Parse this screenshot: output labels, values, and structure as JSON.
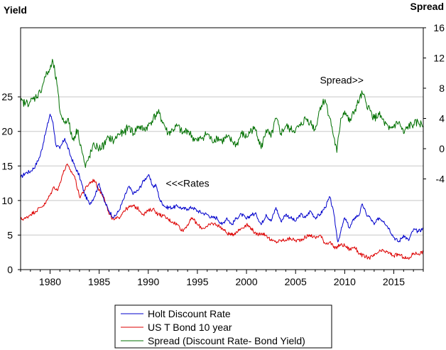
{
  "chart_data": {
    "type": "line",
    "left_axis_label": "Yield",
    "right_axis_label": "Spread",
    "x_range": [
      1977,
      2018
    ],
    "x_ticks": [
      "1980",
      "1985",
      "1990",
      "1995",
      "2000",
      "2005",
      "2010",
      "2015"
    ],
    "left_range": [
      0,
      35
    ],
    "left_ticks": [
      "0",
      "5",
      "10",
      "15",
      "20",
      "25"
    ],
    "right_range": [
      -16,
      16
    ],
    "right_ticks": [
      "-4",
      "0",
      "4",
      "8",
      "12",
      "16"
    ],
    "grid": "horizontal",
    "annotations": [
      {
        "text": "Spread>>",
        "x": 2009.7,
        "y_right": 8.6
      },
      {
        "text": "<<<Rates",
        "x": 1994.0,
        "y_left": 12.0
      }
    ],
    "legend_position": "bottom-center",
    "series": [
      {
        "name": "Holt Discount Rate",
        "color": "#0000cc",
        "axis": "left",
        "x": [
          1977.0,
          1977.5,
          1978.0,
          1978.5,
          1979.0,
          1979.5,
          1980.0,
          1980.3,
          1980.6,
          1981.0,
          1981.5,
          1982.0,
          1982.5,
          1983.0,
          1983.5,
          1984.0,
          1984.5,
          1985.0,
          1985.5,
          1986.0,
          1986.5,
          1987.0,
          1987.5,
          1988.0,
          1988.5,
          1989.0,
          1989.5,
          1990.0,
          1990.5,
          1990.8,
          1991.2,
          1991.8,
          1992.5,
          1993.0,
          1993.5,
          1994.0,
          1994.5,
          1995.0,
          1995.5,
          1996.0,
          1996.5,
          1997.0,
          1997.5,
          1998.0,
          1998.5,
          1999.0,
          1999.5,
          2000.0,
          2000.5,
          2001.0,
          2001.5,
          2002.0,
          2002.5,
          2003.0,
          2003.5,
          2004.0,
          2004.5,
          2005.0,
          2005.5,
          2006.0,
          2006.5,
          2007.0,
          2007.5,
          2008.0,
          2008.5,
          2008.9,
          2009.3,
          2009.6,
          2010.0,
          2010.5,
          2011.0,
          2011.5,
          2011.8,
          2012.2,
          2012.6,
          2013.0,
          2013.5,
          2014.0,
          2014.5,
          2015.0,
          2015.5,
          2016.0,
          2016.5,
          2017.0,
          2017.5,
          2018.0
        ],
        "values": [
          13.3,
          14.0,
          14.2,
          15.0,
          16.5,
          19.5,
          22.5,
          21.3,
          18.0,
          17.5,
          19.0,
          16.8,
          15.0,
          13.5,
          11.0,
          9.5,
          10.5,
          12.5,
          10.0,
          8.5,
          7.5,
          8.5,
          10.2,
          12.0,
          11.0,
          11.5,
          12.8,
          13.7,
          12.0,
          12.2,
          10.0,
          9.0,
          9.0,
          9.2,
          8.8,
          8.8,
          9.0,
          8.5,
          8.2,
          8.0,
          7.5,
          7.5,
          6.5,
          7.5,
          6.5,
          7.5,
          8.0,
          7.3,
          8.0,
          8.0,
          6.5,
          8.0,
          7.0,
          9.0,
          7.0,
          8.0,
          7.5,
          7.0,
          8.0,
          7.5,
          8.5,
          7.5,
          8.0,
          9.0,
          10.5,
          8.0,
          4.0,
          5.5,
          7.5,
          6.0,
          7.5,
          8.0,
          9.5,
          8.0,
          7.5,
          6.5,
          7.5,
          7.0,
          6.0,
          4.7,
          4.0,
          5.0,
          4.2,
          5.8,
          5.5,
          6.0
        ]
      },
      {
        "name": "US T Bond 10 year",
        "color": "#dd0000",
        "axis": "left",
        "x": [
          1977.0,
          1977.5,
          1978.0,
          1978.5,
          1979.0,
          1979.5,
          1980.0,
          1980.4,
          1980.8,
          1981.2,
          1981.7,
          1982.0,
          1982.5,
          1983.0,
          1983.5,
          1984.0,
          1984.5,
          1985.0,
          1985.5,
          1986.0,
          1986.5,
          1987.0,
          1987.5,
          1988.0,
          1988.5,
          1989.0,
          1989.5,
          1990.0,
          1990.5,
          1991.0,
          1991.5,
          1992.0,
          1992.5,
          1993.0,
          1993.5,
          1994.0,
          1994.5,
          1995.0,
          1995.5,
          1996.0,
          1996.5,
          1997.0,
          1997.5,
          1998.0,
          1998.5,
          1999.0,
          1999.5,
          2000.0,
          2000.5,
          2001.0,
          2001.5,
          2002.0,
          2002.5,
          2003.0,
          2003.5,
          2004.0,
          2004.5,
          2005.0,
          2005.5,
          2006.0,
          2006.5,
          2007.0,
          2007.5,
          2008.0,
          2008.5,
          2009.0,
          2009.5,
          2010.0,
          2010.5,
          2011.0,
          2011.5,
          2012.0,
          2012.5,
          2013.0,
          2013.5,
          2014.0,
          2014.5,
          2015.0,
          2015.5,
          2016.0,
          2016.5,
          2017.0,
          2017.5,
          2018.0
        ],
        "values": [
          7.3,
          7.4,
          8.0,
          8.4,
          9.0,
          9.5,
          10.8,
          12.0,
          11.5,
          13.5,
          15.2,
          14.5,
          13.5,
          10.5,
          11.5,
          12.5,
          13.0,
          11.5,
          10.5,
          8.0,
          7.2,
          7.5,
          8.5,
          9.0,
          9.2,
          8.8,
          8.0,
          8.5,
          8.8,
          8.0,
          7.8,
          7.3,
          6.9,
          6.5,
          5.6,
          6.5,
          7.5,
          6.5,
          6.0,
          6.2,
          6.7,
          6.5,
          6.0,
          5.3,
          5.0,
          5.5,
          6.0,
          6.5,
          6.0,
          5.0,
          5.3,
          5.0,
          4.2,
          4.0,
          4.2,
          4.3,
          4.5,
          4.2,
          4.3,
          4.7,
          5.0,
          4.6,
          5.0,
          3.8,
          4.0,
          3.0,
          3.6,
          3.5,
          2.9,
          3.3,
          2.3,
          1.9,
          1.7,
          2.0,
          2.6,
          2.7,
          2.4,
          2.0,
          2.2,
          1.8,
          1.5,
          2.4,
          2.3,
          2.6
        ]
      },
      {
        "name": "Spread (Discount Rate- Bond Yield)",
        "color": "#007000",
        "axis": "right",
        "x": [
          1977.0,
          1977.5,
          1978.0,
          1978.5,
          1979.0,
          1979.5,
          1980.0,
          1980.3,
          1980.7,
          1981.0,
          1981.4,
          1981.8,
          1982.3,
          1982.8,
          1983.2,
          1983.6,
          1984.0,
          1984.5,
          1985.0,
          1985.5,
          1986.0,
          1986.5,
          1987.0,
          1987.5,
          1988.0,
          1988.5,
          1989.0,
          1989.5,
          1990.0,
          1990.5,
          1991.0,
          1991.5,
          1992.0,
          1992.5,
          1993.0,
          1993.5,
          1994.0,
          1994.5,
          1995.0,
          1995.5,
          1996.0,
          1996.5,
          1997.0,
          1997.5,
          1998.0,
          1998.5,
          1999.0,
          1999.5,
          2000.0,
          2000.5,
          2001.0,
          2001.5,
          2002.0,
          2002.5,
          2003.0,
          2003.5,
          2004.0,
          2004.5,
          2005.0,
          2005.5,
          2006.0,
          2006.5,
          2007.0,
          2007.5,
          2008.0,
          2008.5,
          2008.9,
          2009.2,
          2009.6,
          2010.0,
          2010.5,
          2011.0,
          2011.5,
          2011.8,
          2012.2,
          2012.6,
          2013.0,
          2013.5,
          2014.0,
          2014.5,
          2015.0,
          2015.5,
          2016.0,
          2016.5,
          2017.0,
          2017.5,
          2018.0
        ],
        "values": [
          6.2,
          6.0,
          6.2,
          6.8,
          7.5,
          9.5,
          10.5,
          11.5,
          8.5,
          5.0,
          3.5,
          4.0,
          1.2,
          2.5,
          0.0,
          -2.5,
          -1.0,
          0.5,
          0.0,
          0.5,
          1.5,
          1.0,
          2.0,
          2.0,
          3.0,
          2.0,
          3.0,
          2.5,
          3.0,
          4.0,
          4.8,
          3.5,
          2.0,
          2.5,
          3.0,
          2.0,
          2.5,
          1.5,
          1.0,
          1.5,
          2.0,
          1.0,
          1.5,
          1.0,
          1.5,
          1.0,
          0.5,
          2.0,
          1.5,
          2.5,
          2.5,
          0.0,
          2.5,
          1.5,
          4.0,
          2.0,
          3.0,
          2.5,
          2.5,
          3.0,
          4.0,
          3.5,
          2.5,
          5.5,
          6.5,
          4.0,
          1.5,
          -0.5,
          4.0,
          5.0,
          3.5,
          5.0,
          6.5,
          7.3,
          6.0,
          5.0,
          4.0,
          4.5,
          3.5,
          2.5,
          3.0,
          3.5,
          2.0,
          3.0,
          3.2,
          3.5,
          3.0
        ]
      }
    ]
  }
}
